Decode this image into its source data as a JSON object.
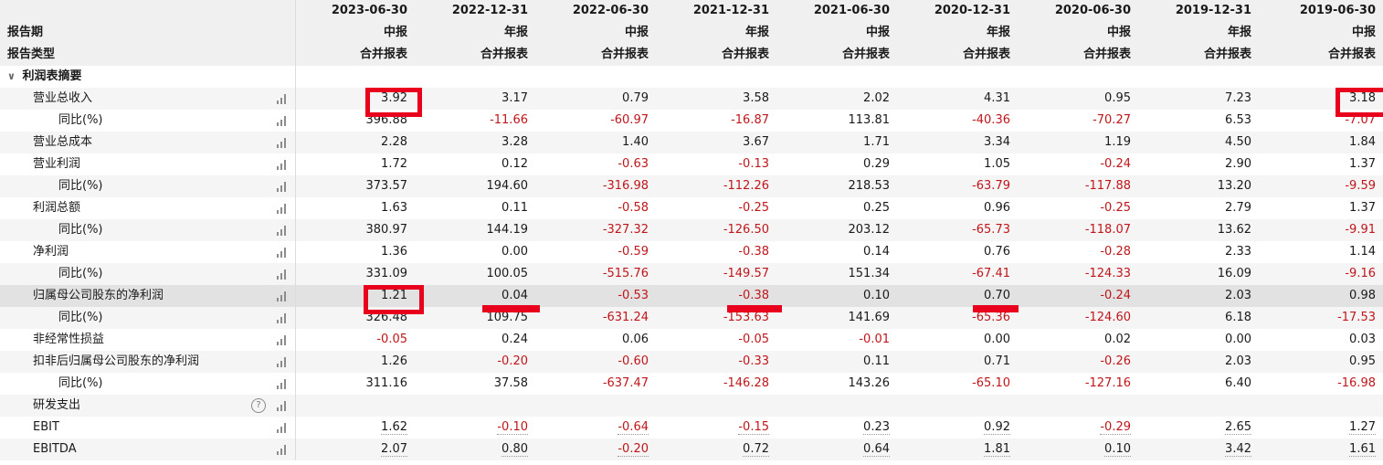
{
  "header": {
    "periods": [
      "2023-06-30",
      "2022-12-31",
      "2022-06-30",
      "2021-12-31",
      "2021-06-30",
      "2020-12-31",
      "2020-06-30",
      "2019-12-31",
      "2019-06-30"
    ],
    "report_period_label": "报告期",
    "report_type_label": "报告类型",
    "report_periods": [
      "中报",
      "年报",
      "中报",
      "年报",
      "中报",
      "年报",
      "中报",
      "年报",
      "中报"
    ],
    "report_types": [
      "合并报表",
      "合并报表",
      "合并报表",
      "合并报表",
      "合并报表",
      "合并报表",
      "合并报表",
      "合并报表",
      "合并报表"
    ]
  },
  "section": {
    "label": "利润表摘要",
    "chevron": "chevron-down-icon"
  },
  "rows": [
    {
      "label": "营业总收入",
      "indent": 1,
      "values": [
        "3.92",
        "3.17",
        "0.79",
        "3.58",
        "2.02",
        "4.31",
        "0.95",
        "7.23",
        "3.18"
      ]
    },
    {
      "label": "同比(%)",
      "indent": 2,
      "values": [
        "396.88",
        "-11.66",
        "-60.97",
        "-16.87",
        "113.81",
        "-40.36",
        "-70.27",
        "6.53",
        "-7.07"
      ]
    },
    {
      "label": "营业总成本",
      "indent": 1,
      "values": [
        "2.28",
        "3.28",
        "1.40",
        "3.67",
        "1.71",
        "3.34",
        "1.19",
        "4.50",
        "1.84"
      ]
    },
    {
      "label": "营业利润",
      "indent": 1,
      "values": [
        "1.72",
        "0.12",
        "-0.63",
        "-0.13",
        "0.29",
        "1.05",
        "-0.24",
        "2.90",
        "1.37"
      ]
    },
    {
      "label": "同比(%)",
      "indent": 2,
      "values": [
        "373.57",
        "194.60",
        "-316.98",
        "-112.26",
        "218.53",
        "-63.79",
        "-117.88",
        "13.20",
        "-9.59"
      ]
    },
    {
      "label": "利润总额",
      "indent": 1,
      "values": [
        "1.63",
        "0.11",
        "-0.58",
        "-0.25",
        "0.25",
        "0.96",
        "-0.25",
        "2.79",
        "1.37"
      ]
    },
    {
      "label": "同比(%)",
      "indent": 2,
      "values": [
        "380.97",
        "144.19",
        "-327.32",
        "-126.50",
        "203.12",
        "-65.73",
        "-118.07",
        "13.62",
        "-9.91"
      ]
    },
    {
      "label": "净利润",
      "indent": 1,
      "values": [
        "1.36",
        "0.00",
        "-0.59",
        "-0.38",
        "0.14",
        "0.76",
        "-0.28",
        "2.33",
        "1.14"
      ]
    },
    {
      "label": "同比(%)",
      "indent": 2,
      "values": [
        "331.09",
        "100.05",
        "-515.76",
        "-149.57",
        "151.34",
        "-67.41",
        "-124.33",
        "16.09",
        "-9.16"
      ]
    },
    {
      "label": "归属母公司股东的净利润",
      "indent": 1,
      "values": [
        "1.21",
        "0.04",
        "-0.53",
        "-0.38",
        "0.10",
        "0.70",
        "-0.24",
        "2.03",
        "0.98"
      ]
    },
    {
      "label": "同比(%)",
      "indent": 2,
      "values": [
        "326.48",
        "109.75",
        "-631.24",
        "-153.63",
        "141.69",
        "-65.36",
        "-124.60",
        "6.18",
        "-17.53"
      ]
    },
    {
      "label": "非经常性损益",
      "indent": 1,
      "values": [
        "-0.05",
        "0.24",
        "0.06",
        "-0.05",
        "-0.01",
        "0.00",
        "0.02",
        "0.00",
        "0.03"
      ]
    },
    {
      "label": "扣非后归属母公司股东的净利润",
      "indent": 1,
      "values": [
        "1.26",
        "-0.20",
        "-0.60",
        "-0.33",
        "0.11",
        "0.71",
        "-0.26",
        "2.03",
        "0.95"
      ]
    },
    {
      "label": "同比(%)",
      "indent": 2,
      "values": [
        "311.16",
        "37.58",
        "-637.47",
        "-146.28",
        "143.26",
        "-65.10",
        "-127.16",
        "6.40",
        "-16.98"
      ]
    },
    {
      "label": "研发支出",
      "indent": 1,
      "help": "?",
      "values": [
        "",
        "",
        "",
        "",
        "",
        "",
        "",
        "",
        ""
      ]
    },
    {
      "label": "EBIT",
      "indent": 1,
      "values": [
        "1.62",
        "-0.10",
        "-0.64",
        "-0.15",
        "0.23",
        "0.92",
        "-0.29",
        "2.65",
        "1.27"
      ]
    },
    {
      "label": "EBITDA",
      "indent": 1,
      "values": [
        "2.07",
        "0.80",
        "-0.20",
        "0.72",
        "0.64",
        "1.81",
        "0.10",
        "3.42",
        "1.61"
      ]
    }
  ],
  "colors": {
    "negative": "#c0161b",
    "highlight_box": "#e8001c",
    "row_alt": "#f5f5f5",
    "row_selected": "#e2e2e2"
  },
  "icons": {
    "row_chart": "bar-chart-icon",
    "help": "help-icon"
  }
}
